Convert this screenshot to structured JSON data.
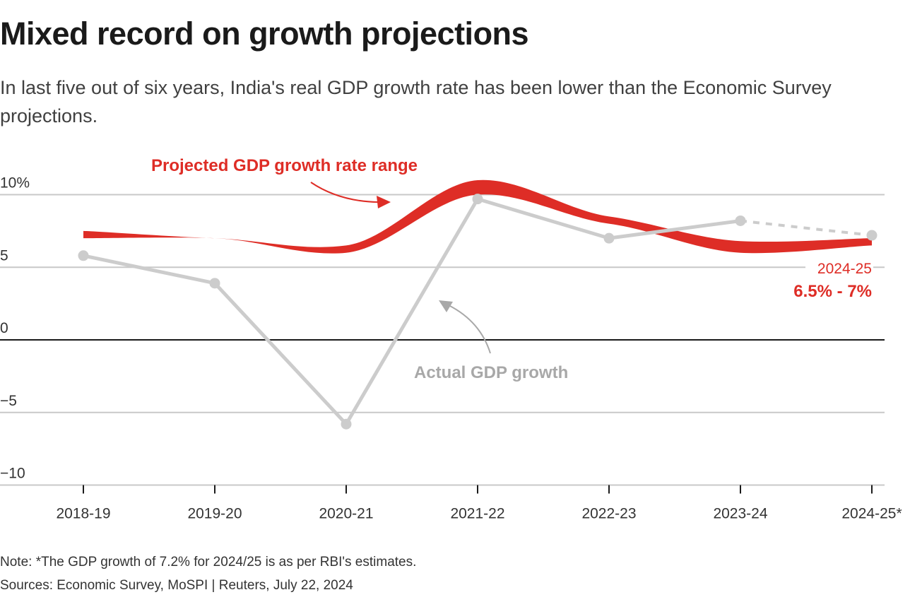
{
  "header": {
    "title": "Mixed record on growth projections",
    "subtitle": "In last five out of six years, India's real GDP growth rate has been lower than the Economic Survey projections."
  },
  "footer": {
    "note": "Note: *The GDP growth of 7.2% for 2024/25 is as per RBI's estimates.",
    "sources": "Sources: Economic Survey, MoSPI | Reuters, July 22, 2024"
  },
  "colors": {
    "projected": "#de2d26",
    "actual": "#cccccc",
    "actual_label": "#a8a8a8",
    "grid": "#c8c8c8",
    "zero_line": "#1a1a1a"
  },
  "chart_data": {
    "type": "area",
    "title": "Mixed record on growth projections",
    "xlabel": "",
    "ylabel": "",
    "categories": [
      "2018-19",
      "2019-20",
      "2020-21",
      "2021-22",
      "2022-23",
      "2023-24",
      "2024-25*"
    ],
    "ylim": [
      -10,
      10
    ],
    "yticks": [
      {
        "value": 10,
        "label": "10%"
      },
      {
        "value": 5,
        "label": "5"
      },
      {
        "value": 0,
        "label": "0"
      },
      {
        "value": -5,
        "label": "−5"
      },
      {
        "value": -10,
        "label": "−10"
      }
    ],
    "grid": true,
    "series": [
      {
        "name": "Projected GDP growth rate range",
        "kind": "band",
        "low": [
          7.0,
          7.0,
          6.0,
          10.0,
          8.0,
          6.0,
          6.5
        ],
        "high": [
          7.5,
          7.0,
          6.5,
          11.0,
          8.5,
          6.8,
          7.0
        ]
      },
      {
        "name": "Actual GDP growth",
        "kind": "line",
        "values": [
          5.8,
          3.9,
          -5.8,
          9.7,
          7.0,
          8.2,
          7.2
        ],
        "estimated_from_index": 5
      }
    ],
    "annotations": {
      "projected_label": "Projected GDP growth rate range",
      "actual_label": "Actual GDP growth",
      "latest_year": "2024-25",
      "latest_range": "6.5% - 7%"
    }
  }
}
